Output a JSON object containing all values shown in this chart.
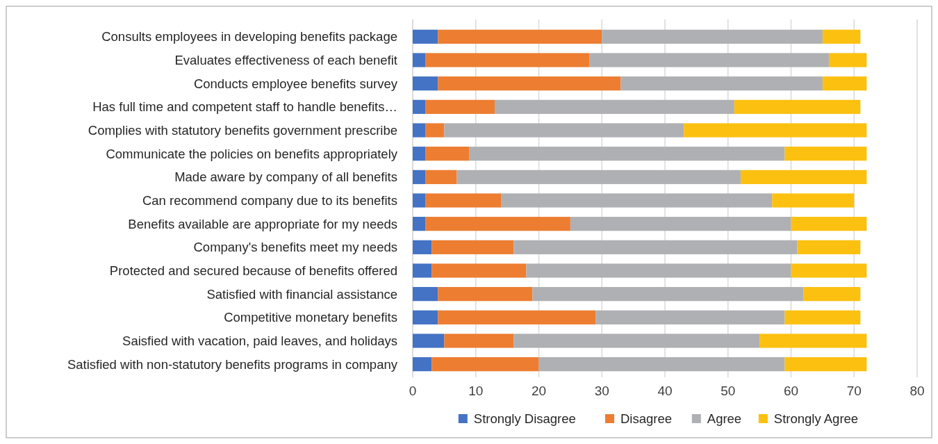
{
  "chart_data": {
    "type": "bar",
    "orientation": "horizontal",
    "stacked": true,
    "categories": [
      "Consults employees in developing benefits package",
      "Evaluates effectiveness of each benefit",
      "Conducts employee benefits survey",
      "Has full time and competent staff to handle benefits…",
      "Complies with statutory benefits government prescribe",
      "Communicate the policies on benefits appropriately",
      "Made aware by company of all benefits",
      "Can recommend company due to its benefits",
      "Benefits available are appropriate for my needs",
      "Company's benefits meet my needs",
      "Protected and secured because of benefits offered",
      "Satisfied with financial assistance",
      "Competitive monetary benefits",
      "Saisfied with vacation, paid leaves, and holidays",
      "Satisfied with non-statutory benefits programs in company"
    ],
    "series": [
      {
        "name": "Strongly Disagree",
        "color": "#4472c4",
        "values": [
          4,
          2,
          4,
          2,
          2,
          2,
          2,
          2,
          2,
          3,
          3,
          4,
          4,
          5,
          3
        ]
      },
      {
        "name": "Disagree",
        "color": "#ed7d31",
        "values": [
          26,
          26,
          29,
          11,
          3,
          7,
          5,
          12,
          23,
          13,
          15,
          15,
          25,
          11,
          17
        ]
      },
      {
        "name": "Agree",
        "color": "#afb0b3",
        "values": [
          35,
          38,
          32,
          38,
          38,
          50,
          45,
          43,
          35,
          45,
          42,
          43,
          30,
          39,
          39
        ]
      },
      {
        "name": "Strongly Agree",
        "color": "#fcc010",
        "values": [
          6,
          6,
          7,
          20,
          29,
          13,
          20,
          13,
          12,
          10,
          12,
          9,
          12,
          17,
          13
        ]
      }
    ],
    "xlim": [
      0,
      80
    ],
    "xticks": [
      0,
      10,
      20,
      30,
      40,
      50,
      60,
      70,
      80
    ],
    "grid": "x",
    "legend": "bottom"
  }
}
